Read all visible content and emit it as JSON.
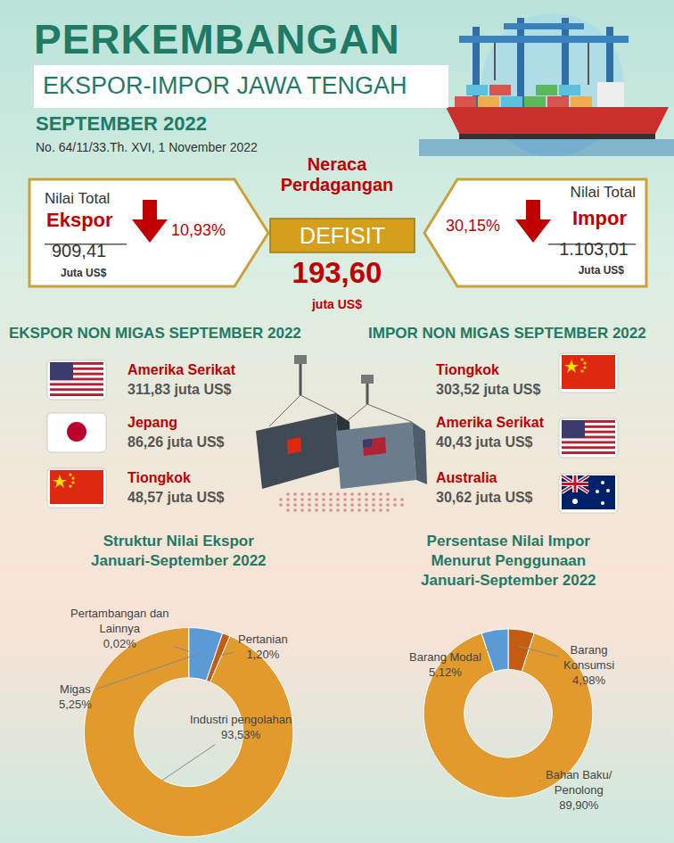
{
  "header": {
    "title": "PERKEMBANGAN",
    "subtitle": "EKSPOR-IMPOR JAWA TENGAH",
    "period": "SEPTEMBER 2022",
    "release": "No. 64/11/33.Th. XVI, 1 November 2022"
  },
  "summary": {
    "export": {
      "caption": "Nilai Total",
      "name": "Ekspor",
      "value": "909,41",
      "unit": "Juta US$",
      "change": "10,93%"
    },
    "balance": {
      "title": "Neraca\nPerdagangan",
      "status": "DEFISIT",
      "value": "193,60",
      "unit": "juta US$"
    },
    "import": {
      "caption": "Nilai Total",
      "name": "Impor",
      "value": "1.103,01",
      "unit": "Juta US$",
      "change": "30,15%"
    }
  },
  "export_nonmigas": {
    "title": "EKSPOR NON MIGAS SEPTEMBER 2022",
    "rows": [
      {
        "country": "Amerika Serikat",
        "value": "311,83",
        "unit": "juta US$"
      },
      {
        "country": "Jepang",
        "value": "86,26",
        "unit": "juta US$"
      },
      {
        "country": "Tiongkok",
        "value": "48,57",
        "unit": "juta US$"
      }
    ]
  },
  "import_nonmigas": {
    "title": "IMPOR NON MIGAS SEPTEMBER 2022",
    "rows": [
      {
        "country": "Tiongkok",
        "value": "303,52",
        "unit": "juta US$"
      },
      {
        "country": "Amerika Serikat",
        "value": "40,43",
        "unit": "juta US$"
      },
      {
        "country": "Australia",
        "value": "30,62",
        "unit": "juta US$"
      }
    ]
  },
  "chart_data": [
    {
      "type": "pie",
      "title": "Struktur Nilai Ekspor\nJanuari-September 2022",
      "categories": [
        "Migas",
        "Pertanian",
        "Industri pengolahan",
        "Pertambangan dan\nLainnya"
      ],
      "values": [
        5.25,
        1.2,
        93.53,
        0.02
      ],
      "value_labels": [
        "5,25%",
        "1,20%",
        "93,53%",
        "0,02%"
      ],
      "colors": [
        "#5b9bd5",
        "#c55a11",
        "#e39a2d",
        "#7f7f7f"
      ],
      "data_labels": true
    },
    {
      "type": "pie",
      "title": "Persentase Nilai Impor\nMenurut Penggunaan\nJanuari-September 2022",
      "categories": [
        "Barang\nKonsumsi",
        "Bahan Baku/\nPenolong",
        "Barang Modal"
      ],
      "values": [
        4.98,
        89.9,
        5.12
      ],
      "value_labels": [
        "4,98%",
        "89,90%",
        "5,12%"
      ],
      "colors": [
        "#c55a11",
        "#e39a2d",
        "#5b9bd5"
      ],
      "data_labels": true
    }
  ]
}
